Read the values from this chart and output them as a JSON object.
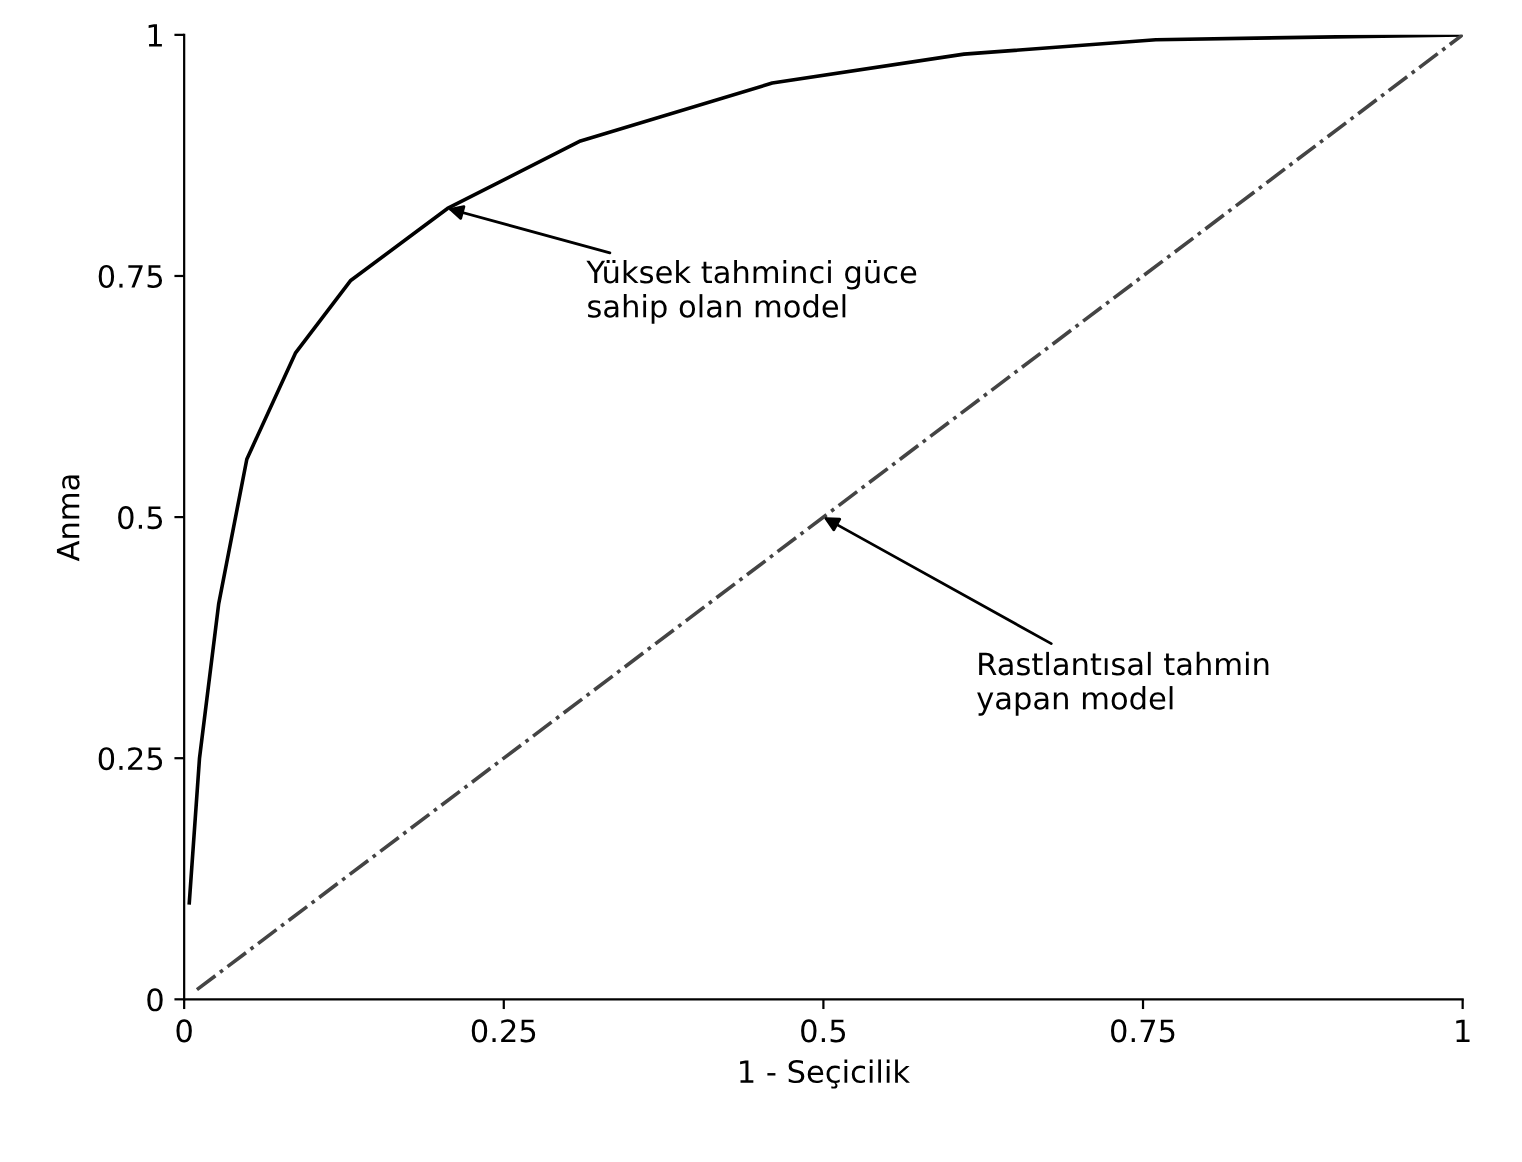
{
  "chart_data": {
    "type": "line",
    "xlabel": "1 - Seçicilik",
    "ylabel": "Anma",
    "xlim": [
      0,
      1
    ],
    "ylim": [
      0,
      1
    ],
    "xticks": [
      0,
      0.25,
      0.5,
      0.75,
      1
    ],
    "yticks": [
      0,
      0.25,
      0.5,
      0.75,
      1
    ],
    "grid": false,
    "legend": false,
    "marker": "none",
    "series": [
      {
        "color": "#000000",
        "line_style": "solid",
        "x": [
          0.004,
          0.012,
          0.027,
          0.049,
          0.087,
          0.13,
          0.206,
          0.31,
          0.46,
          0.61,
          0.76,
          1.0
        ],
        "values": [
          0.1,
          0.25,
          0.41,
          0.56,
          0.67,
          0.745,
          0.82,
          0.89,
          0.95,
          0.98,
          0.995,
          1.0
        ]
      },
      {
        "color": "#444444",
        "line_style": "dashed",
        "x": [
          0.01,
          1.0
        ],
        "values": [
          0.01,
          1.0
        ]
      }
    ],
    "annotations": [
      {
        "text": "Yüksek tahminci güce\nsahip olan model",
        "x": 0.206,
        "y": 0.82
      },
      {
        "text": "Rastlantısal tahmin\nyapan model",
        "x": 0.5,
        "y": 0.5
      }
    ]
  }
}
